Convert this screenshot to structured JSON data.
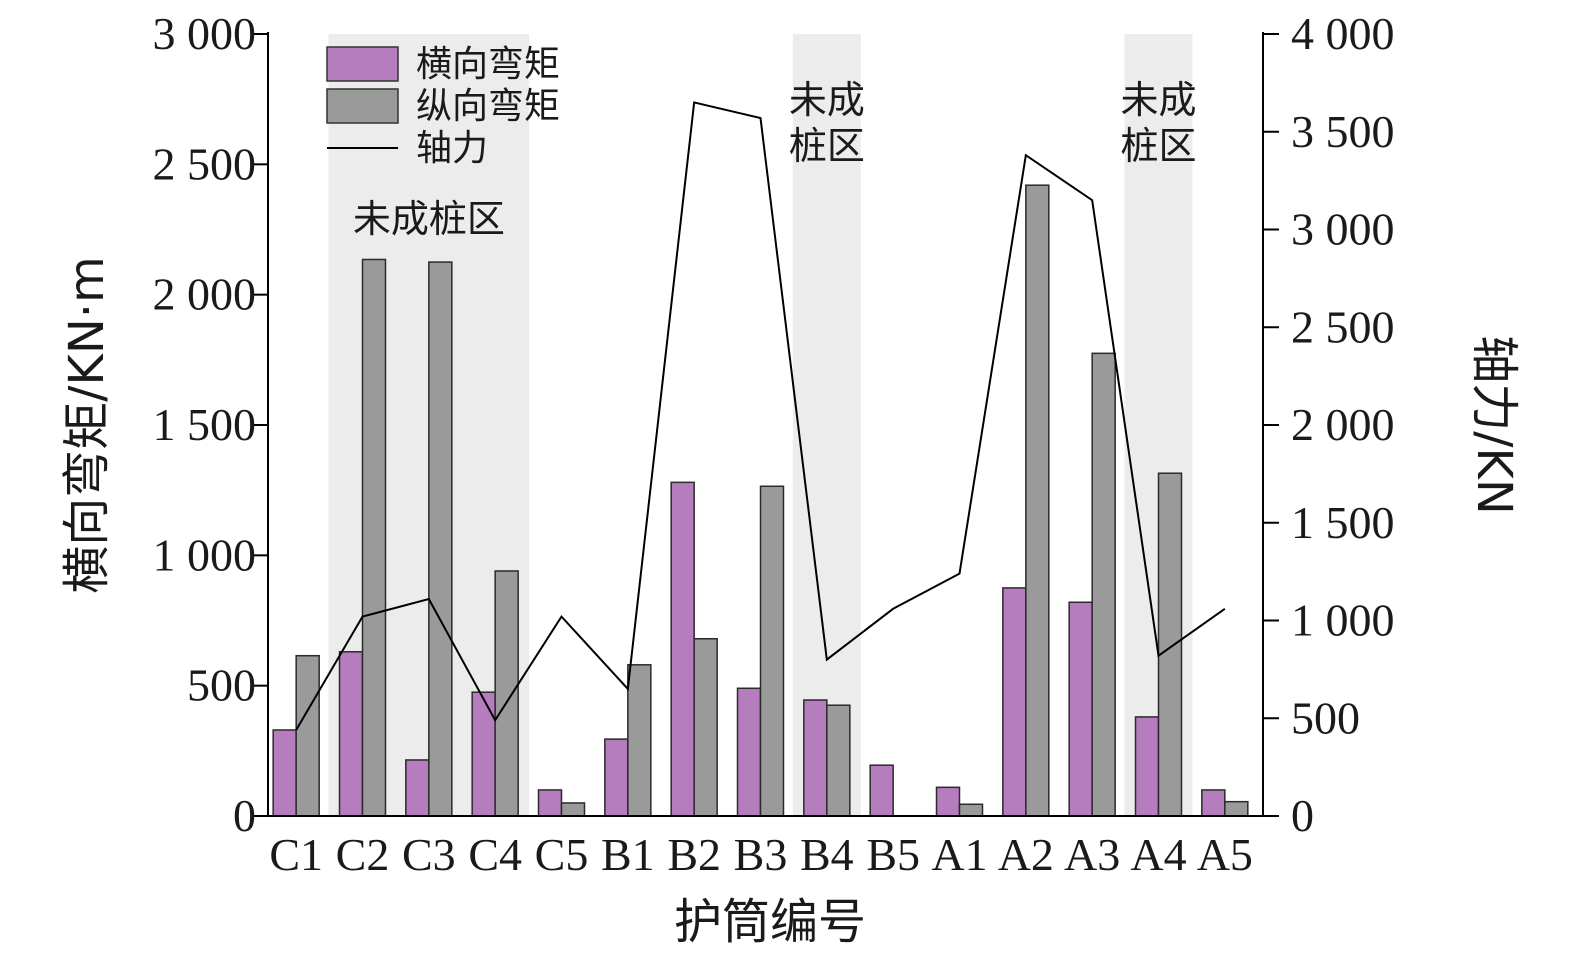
{
  "chart_data": {
    "type": "bar",
    "categories": [
      "C1",
      "C2",
      "C3",
      "C4",
      "C5",
      "B1",
      "B2",
      "B3",
      "B4",
      "B5",
      "A1",
      "A2",
      "A3",
      "A4",
      "A5"
    ],
    "series": [
      {
        "name": "横向弯矩",
        "kind": "bar",
        "axis": "left",
        "color": "#b57cbe",
        "values": [
          330,
          630,
          215,
          475,
          100,
          295,
          1280,
          490,
          445,
          195,
          110,
          875,
          820,
          380,
          100
        ]
      },
      {
        "name": "纵向弯矩",
        "kind": "bar",
        "axis": "left",
        "color": "#9a9a9a",
        "values": [
          615,
          2135,
          2125,
          940,
          50,
          580,
          680,
          1265,
          425,
          0,
          45,
          2420,
          1775,
          1315,
          55
        ]
      },
      {
        "name": "轴力",
        "kind": "line",
        "axis": "right",
        "color": "#000000",
        "values": [
          440,
          1020,
          1110,
          490,
          1020,
          650,
          3650,
          3570,
          800,
          1060,
          1240,
          3380,
          3150,
          820,
          1060
        ]
      }
    ],
    "xlabel": "护筒编号",
    "ylabel": "横向弯矩/KN·m",
    "y2label": "轴力/KN",
    "ylim": [
      0,
      3000
    ],
    "y2lim": [
      0,
      4000
    ],
    "yticks": [
      "0",
      "500",
      "1 000",
      "1 500",
      "2 000",
      "2 500",
      "3 000"
    ],
    "y2ticks": [
      "0",
      "500",
      "1 000",
      "1 500",
      "2 000",
      "2 500",
      "3 000",
      "3 500",
      "4 000"
    ],
    "shaded_regions": [
      {
        "from": "C2",
        "to": "C4",
        "label_lines": [
          "未成桩区"
        ]
      },
      {
        "from": "B4",
        "to": "B4",
        "label_lines": [
          "未成",
          "桩区"
        ]
      },
      {
        "from": "A4",
        "to": "A4",
        "label_lines": [
          "未成",
          "桩区"
        ]
      }
    ],
    "shade_color": "#ececec",
    "legend_position": "top-left",
    "grid": false
  }
}
